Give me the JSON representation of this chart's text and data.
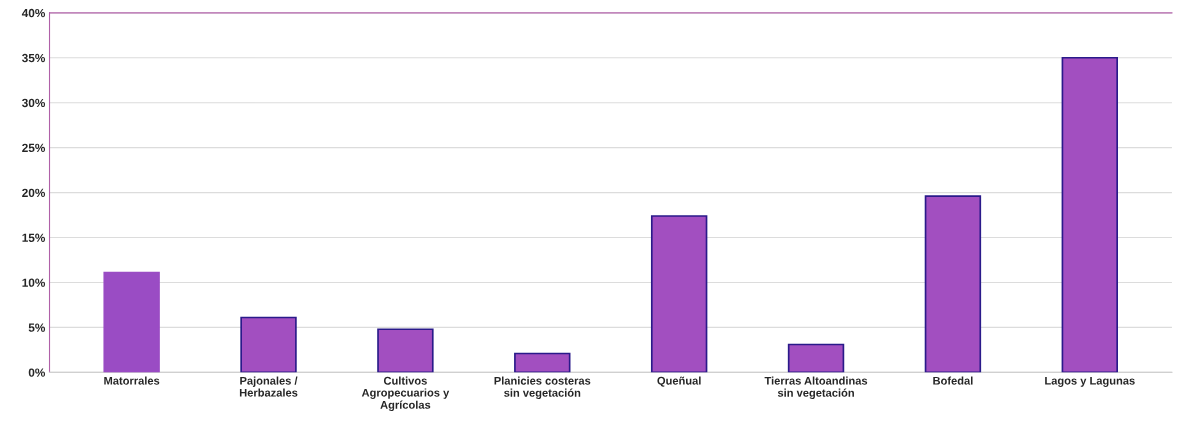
{
  "chart_data": {
    "type": "bar",
    "categories": [
      "Matorrales",
      "Pajonales /\nHerbazales",
      "Cultivos\nAgropecuarios y\nAgrícolas",
      "Planicies costeras\nsin vegetación",
      "Queñual",
      "Tierras Altoandinas\nsin vegetación",
      "Bofedal",
      "Lagos y Lagunas"
    ],
    "values": [
      11.1,
      6.1,
      4.8,
      2.1,
      17.4,
      3.1,
      19.6,
      35.0
    ],
    "colors": [
      "#9a4cc4",
      "#a24fc0",
      "#a24fc0",
      "#a24fc0",
      "#a24fc0",
      "#a24fc0",
      "#a24fc0",
      "#a24fc0"
    ],
    "ylim": [
      0,
      40
    ],
    "yticks": [
      {
        "value": 0,
        "label": "0%"
      },
      {
        "value": 5,
        "label": "5%"
      },
      {
        "value": 10,
        "label": "10%"
      },
      {
        "value": 15,
        "label": "15%"
      },
      {
        "value": 20,
        "label": "20%"
      },
      {
        "value": 25,
        "label": "25%"
      },
      {
        "value": 30,
        "label": "30%"
      },
      {
        "value": 35,
        "label": "35%"
      },
      {
        "value": 40,
        "label": "40%"
      }
    ],
    "grid": "y"
  }
}
